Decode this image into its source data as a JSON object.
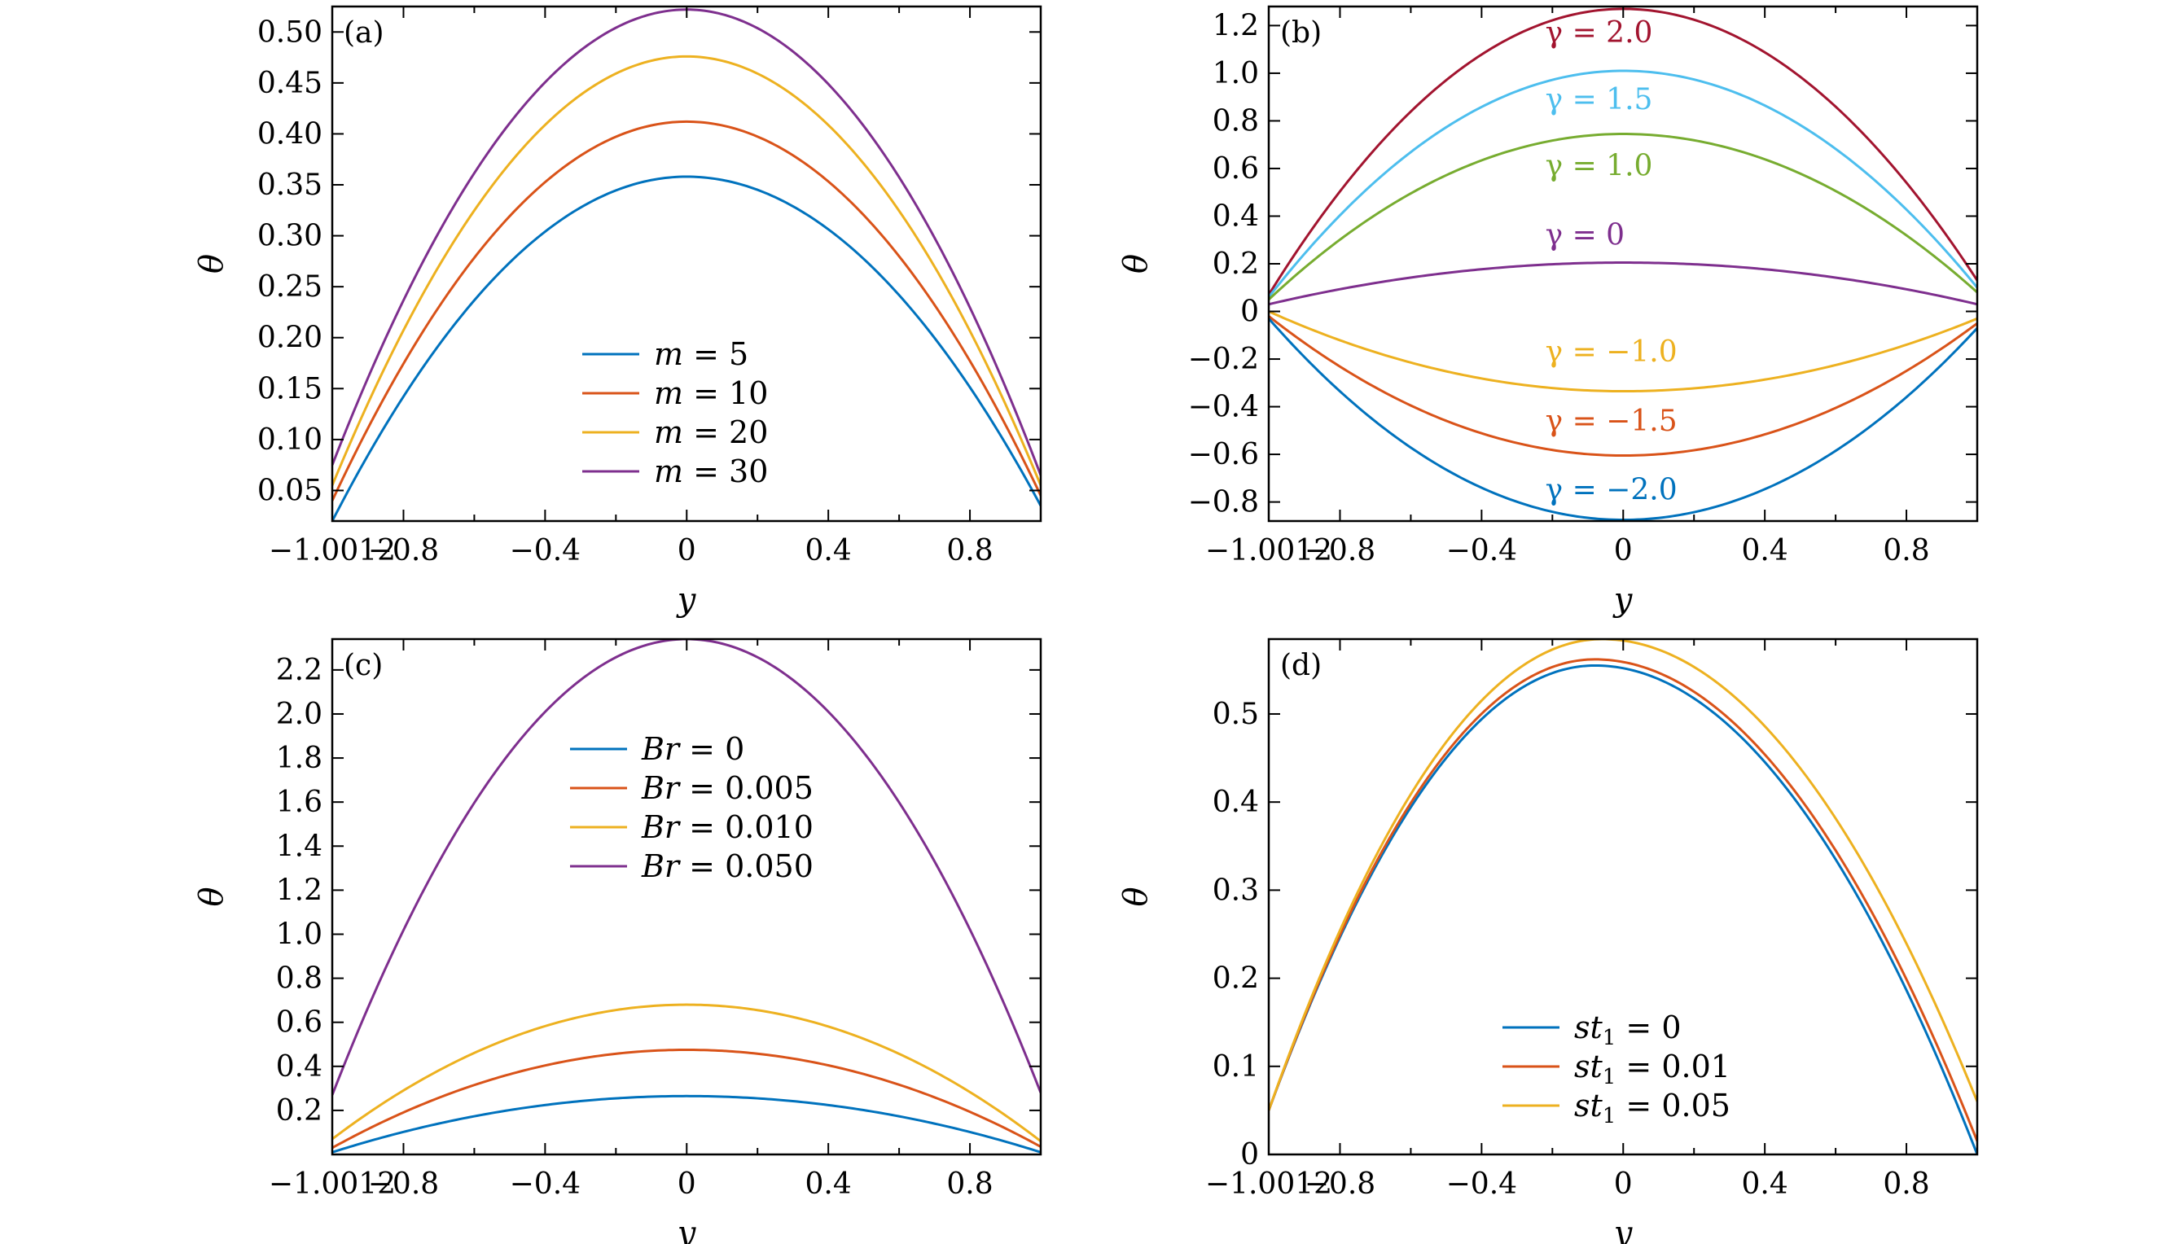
{
  "colors": {
    "blue": "#0072BD",
    "orange": "#D95319",
    "yellow": "#EDB120",
    "purple": "#7E2F8E",
    "green": "#77AC30",
    "lightblue": "#4DBEEE",
    "darkred": "#A2142F"
  },
  "chart_data": [
    {
      "type": "line",
      "panel_label": "(a)",
      "xlabel": "y",
      "ylabel": "θ",
      "xlim": [
        -1.0012,
        1.0
      ],
      "ylim": [
        0.02,
        0.525
      ],
      "x_ticks": [
        -1.0012,
        -0.8,
        -0.4,
        0,
        0.4,
        0.8
      ],
      "x_tick_labels": [
        "−1.0012",
        "−0.8",
        "−0.4",
        "0",
        "0.4",
        "0.8"
      ],
      "y_ticks": [
        0.05,
        0.1,
        0.15,
        0.2,
        0.25,
        0.3,
        0.35,
        0.4,
        0.45,
        0.5
      ],
      "y_tick_labels": [
        "0.05",
        "0.10",
        "0.15",
        "0.20",
        "0.25",
        "0.30",
        "0.35",
        "0.40",
        "0.45",
        "0.50"
      ],
      "legend": "center",
      "series": [
        {
          "name": "m = 5",
          "color": "blue",
          "peak_x": 0.0,
          "peak": 0.358,
          "left": 0.02,
          "right": 0.035
        },
        {
          "name": "m = 10",
          "color": "orange",
          "peak_x": 0.0,
          "peak": 0.412,
          "left": 0.04,
          "right": 0.045
        },
        {
          "name": "m = 20",
          "color": "yellow",
          "peak_x": 0.0,
          "peak": 0.476,
          "left": 0.055,
          "right": 0.055
        },
        {
          "name": "m = 30",
          "color": "purple",
          "peak_x": 0.0,
          "peak": 0.522,
          "left": 0.075,
          "right": 0.065
        }
      ],
      "legend_entries": [
        {
          "label": "m = 5",
          "color": "blue"
        },
        {
          "label": "m = 10",
          "color": "orange"
        },
        {
          "label": "m = 20",
          "color": "yellow"
        },
        {
          "label": "m = 30",
          "color": "purple"
        }
      ]
    },
    {
      "type": "line",
      "panel_label": "(b)",
      "xlabel": "y",
      "ylabel": "θ",
      "xlim": [
        -1.0012,
        1.0
      ],
      "ylim": [
        -0.88,
        1.28
      ],
      "x_ticks": [
        -1.0012,
        -0.8,
        -0.4,
        0,
        0.4,
        0.8
      ],
      "x_tick_labels": [
        "−1.0012",
        "−0.8",
        "−0.4",
        "0",
        "0.4",
        "0.8"
      ],
      "y_ticks": [
        -0.8,
        -0.6,
        -0.4,
        -0.2,
        0,
        0.2,
        0.4,
        0.6,
        0.8,
        1.0,
        1.2
      ],
      "y_tick_labels": [
        "−0.8",
        "−0.6",
        "−0.4",
        "−0.2",
        "0",
        "0.2",
        "0.4",
        "0.6",
        "0.8",
        "1.0",
        "1.2"
      ],
      "legend": "none",
      "series": [
        {
          "name": "γ = 2.0",
          "color": "darkred",
          "peak_x": 0.0,
          "peak": 1.27,
          "left": 0.07,
          "right": 0.13
        },
        {
          "name": "γ = 1.5",
          "color": "lightblue",
          "peak_x": 0.0,
          "peak": 1.01,
          "left": 0.06,
          "right": 0.1
        },
        {
          "name": "γ = 1.0",
          "color": "green",
          "peak_x": 0.0,
          "peak": 0.745,
          "left": 0.05,
          "right": 0.08
        },
        {
          "name": "γ = 0",
          "color": "purple",
          "peak_x": 0.0,
          "peak": 0.205,
          "left": 0.03,
          "right": 0.03
        },
        {
          "name": "γ = −1.0",
          "color": "yellow",
          "peak_x": 0.0,
          "peak": -0.335,
          "left": 0.0,
          "right": -0.03
        },
        {
          "name": "γ = −1.5",
          "color": "orange",
          "peak_x": 0.0,
          "peak": -0.605,
          "left": -0.02,
          "right": -0.05
        },
        {
          "name": "γ = −2.0",
          "color": "blue",
          "peak_x": 0.0,
          "peak": -0.875,
          "left": -0.03,
          "right": -0.07
        }
      ],
      "annotations": [
        {
          "text": "γ = 2.0",
          "color": "darkred",
          "x": -0.22,
          "y": 1.13
        },
        {
          "text": "γ = 1.5",
          "color": "lightblue",
          "x": -0.22,
          "y": 0.85
        },
        {
          "text": "γ = 1.0",
          "color": "green",
          "x": -0.22,
          "y": 0.57
        },
        {
          "text": "γ = 0",
          "color": "purple",
          "x": -0.22,
          "y": 0.28
        },
        {
          "text": "γ = −1.0",
          "color": "yellow",
          "x": -0.22,
          "y": -0.21
        },
        {
          "text": "γ = −1.5",
          "color": "orange",
          "x": -0.22,
          "y": -0.5
        },
        {
          "text": "γ = −2.0",
          "color": "blue",
          "x": -0.22,
          "y": -0.79
        }
      ]
    },
    {
      "type": "line",
      "panel_label": "(c)",
      "xlabel": "y",
      "ylabel": "θ",
      "xlim": [
        -1.0012,
        1.0
      ],
      "ylim": [
        0.0,
        2.34
      ],
      "x_ticks": [
        -1.0012,
        -0.8,
        -0.4,
        0,
        0.4,
        0.8
      ],
      "x_tick_labels": [
        "−1.0012",
        "−0.8",
        "−0.4",
        "0",
        "0.4",
        "0.8"
      ],
      "y_ticks": [
        0.2,
        0.4,
        0.6,
        0.8,
        1.0,
        1.2,
        1.4,
        1.6,
        1.8,
        2.0,
        2.2
      ],
      "y_tick_labels": [
        "0.2",
        "0.4",
        "0.6",
        "0.8",
        "1.0",
        "1.2",
        "1.4",
        "1.6",
        "1.8",
        "2.0",
        "2.2"
      ],
      "legend": "upper-center",
      "series": [
        {
          "name": "Br = 0",
          "color": "blue",
          "peak_x": 0.0,
          "peak": 0.265,
          "left": 0.01,
          "right": 0.01
        },
        {
          "name": "Br = 0.005",
          "color": "orange",
          "peak_x": 0.0,
          "peak": 0.475,
          "left": 0.03,
          "right": 0.035
        },
        {
          "name": "Br = 0.010",
          "color": "yellow",
          "peak_x": 0.0,
          "peak": 0.68,
          "left": 0.07,
          "right": 0.06
        },
        {
          "name": "Br = 0.050",
          "color": "purple",
          "peak_x": 0.0,
          "peak": 2.34,
          "left": 0.27,
          "right": 0.28
        }
      ],
      "legend_entries": [
        {
          "label": "Br = 0",
          "color": "blue"
        },
        {
          "label": "Br = 0.005",
          "color": "orange"
        },
        {
          "label": "Br = 0.010",
          "color": "yellow"
        },
        {
          "label": "Br = 0.050",
          "color": "purple"
        }
      ]
    },
    {
      "type": "line",
      "panel_label": "(d)",
      "xlabel": "y",
      "ylabel": "θ",
      "xlim": [
        -1.0012,
        1.0
      ],
      "ylim": [
        0.0,
        0.585
      ],
      "x_ticks": [
        -1.0012,
        -0.8,
        -0.4,
        0,
        0.4,
        0.8
      ],
      "x_tick_labels": [
        "−1.0012",
        "−0.8",
        "−0.4",
        "0",
        "0.4",
        "0.8"
      ],
      "y_ticks": [
        0,
        0.1,
        0.2,
        0.3,
        0.4,
        0.5
      ],
      "y_tick_labels": [
        "0",
        "0.1",
        "0.2",
        "0.3",
        "0.4",
        "0.5"
      ],
      "legend": "lower-center",
      "series": [
        {
          "name": "st1 = 0",
          "color": "blue",
          "peak_x": -0.08,
          "peak": 0.555,
          "left": 0.05,
          "right": 0.0
        },
        {
          "name": "st1 = 0.01",
          "color": "orange",
          "peak_x": -0.08,
          "peak": 0.562,
          "left": 0.05,
          "right": 0.015
        },
        {
          "name": "st1 = 0.05",
          "color": "yellow",
          "peak_x": -0.06,
          "peak": 0.585,
          "left": 0.05,
          "right": 0.06
        }
      ],
      "legend_entries": [
        {
          "label_main": "st",
          "label_sub": "1",
          "label_rest": " = 0",
          "color": "blue"
        },
        {
          "label_main": "st",
          "label_sub": "1",
          "label_rest": " = 0.01",
          "color": "orange"
        },
        {
          "label_main": "st",
          "label_sub": "1",
          "label_rest": " = 0.05",
          "color": "yellow"
        }
      ]
    }
  ]
}
